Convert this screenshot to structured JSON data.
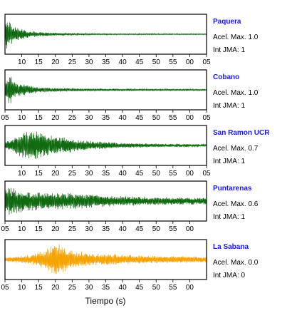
{
  "chart_data": {
    "type": "line",
    "xlabel": "Tiempo (s)",
    "x_range": [
      5,
      65
    ],
    "colors": {
      "station_name": "#1a1ad6",
      "trace_green": "#0f6a10",
      "trace_orange": "#f5a300"
    },
    "panels": [
      {
        "name": "Paquera",
        "acel_label": "Acel. Max. 1.0",
        "jma_label": "Int JMA: 1",
        "color": "#0f6a10",
        "envelope": [
          [
            5,
            0.95
          ],
          [
            6,
            0.7
          ],
          [
            7,
            0.55
          ],
          [
            9,
            0.35
          ],
          [
            12,
            0.2
          ],
          [
            15,
            0.12
          ],
          [
            20,
            0.07
          ],
          [
            30,
            0.045
          ],
          [
            40,
            0.035
          ],
          [
            65,
            0.03
          ]
        ],
        "tick_labels": [
          "10",
          "15",
          "20",
          "25",
          "30",
          "35",
          "40",
          "45",
          "50",
          "55",
          "00",
          "05"
        ]
      },
      {
        "name": "Cobano",
        "acel_label": "Acel. Max. 1.0",
        "jma_label": "Int JMA: 1",
        "color": "#0f6a10",
        "envelope": [
          [
            5,
            0.3
          ],
          [
            6,
            0.95
          ],
          [
            7,
            0.7
          ],
          [
            9,
            0.4
          ],
          [
            12,
            0.25
          ],
          [
            15,
            0.15
          ],
          [
            20,
            0.1
          ],
          [
            30,
            0.07
          ],
          [
            40,
            0.055
          ],
          [
            65,
            0.045
          ]
        ],
        "tick_labels": [
          "05",
          "10",
          "15",
          "20",
          "25",
          "30",
          "35",
          "40",
          "45",
          "50",
          "55",
          "00",
          "05"
        ]
      },
      {
        "name": "San Ramon UCR",
        "acel_label": "Acel. Max. 0.7",
        "jma_label": "Int JMA: 1",
        "color": "#0f6a10",
        "envelope": [
          [
            5,
            0.2
          ],
          [
            8,
            0.5
          ],
          [
            10,
            0.7
          ],
          [
            13,
            0.8
          ],
          [
            16,
            0.7
          ],
          [
            20,
            0.55
          ],
          [
            25,
            0.38
          ],
          [
            30,
            0.25
          ],
          [
            40,
            0.15
          ],
          [
            50,
            0.1
          ],
          [
            65,
            0.07
          ]
        ],
        "tick_labels": [
          "10",
          "15",
          "20",
          "25",
          "30",
          "35",
          "40",
          "45",
          "50",
          "55",
          "00",
          "05"
        ]
      },
      {
        "name": "Puntarenas",
        "acel_label": "Acel. Max. 0.6",
        "jma_label": "Int JMA: 1",
        "color": "#0f6a10",
        "envelope": [
          [
            5,
            0.6
          ],
          [
            6,
            0.85
          ],
          [
            8,
            0.7
          ],
          [
            12,
            0.55
          ],
          [
            18,
            0.5
          ],
          [
            25,
            0.45
          ],
          [
            32,
            0.35
          ],
          [
            40,
            0.28
          ],
          [
            50,
            0.22
          ],
          [
            65,
            0.18
          ]
        ],
        "tick_labels": [
          "05",
          "10",
          "15",
          "20",
          "25",
          "30",
          "35",
          "40",
          "45",
          "50",
          "55",
          "00"
        ]
      },
      {
        "name": "La Sabana",
        "acel_label": "Acel. Max. 0.0",
        "jma_label": "Int JMA: 0",
        "color": "#f5a300",
        "envelope": [
          [
            5,
            0.12
          ],
          [
            10,
            0.2
          ],
          [
            14,
            0.35
          ],
          [
            17,
            0.6
          ],
          [
            19,
            0.85
          ],
          [
            21,
            0.9
          ],
          [
            23,
            0.7
          ],
          [
            26,
            0.5
          ],
          [
            30,
            0.35
          ],
          [
            36,
            0.3
          ],
          [
            42,
            0.25
          ],
          [
            50,
            0.2
          ],
          [
            56,
            0.2
          ],
          [
            65,
            0.15
          ]
        ],
        "tick_labels": [
          "05",
          "10",
          "15",
          "20",
          "25",
          "30",
          "35",
          "40",
          "45",
          "50",
          "55",
          "00"
        ]
      }
    ]
  }
}
